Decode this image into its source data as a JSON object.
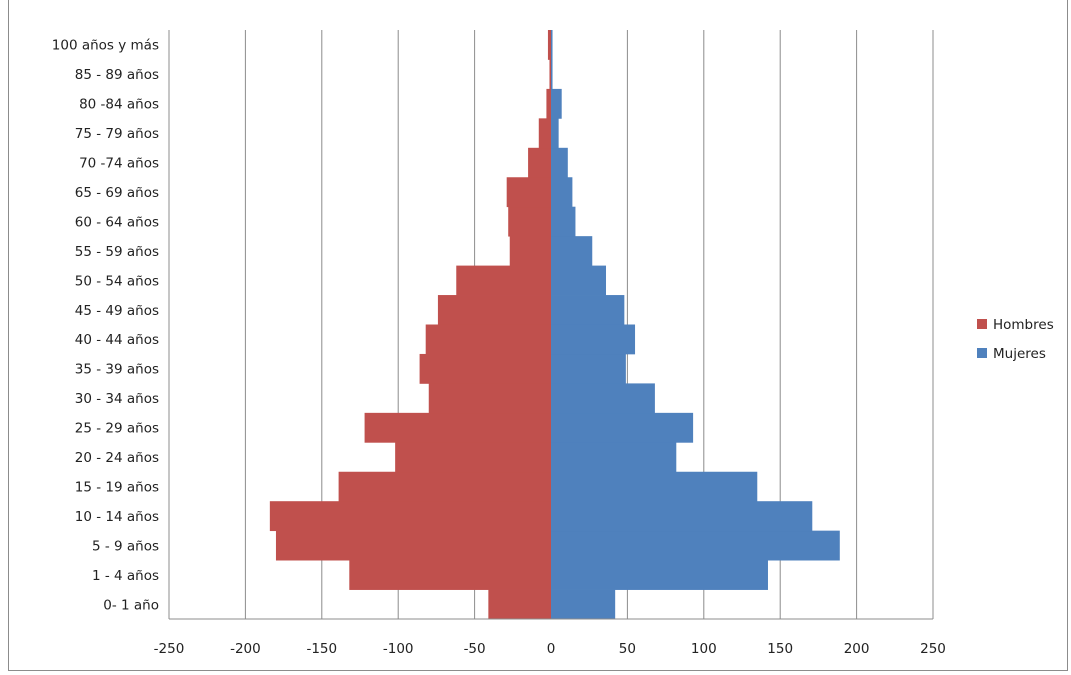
{
  "chart_data": {
    "type": "bar",
    "orientation": "horizontal",
    "layout": "population-pyramid",
    "title": "",
    "xlabel": "",
    "ylabel": "",
    "categories": [
      "0- 1 año",
      "1 - 4 años",
      "5 - 9 años",
      "10 - 14 años",
      "15 - 19 años",
      "20 - 24 años",
      "25 - 29 años",
      "30 - 34 años",
      "35 - 39 años",
      "40 - 44 años",
      "45 - 49 años",
      "50 - 54 años",
      "55 - 59 años",
      "60 - 64 años",
      "65 - 69 años",
      "70 -74 años",
      "75 - 79 años",
      "80 -84 años",
      "85 - 89 años",
      "100 años y más"
    ],
    "series": [
      {
        "name": "Hombres",
        "color": "#c0504d",
        "values": [
          -41,
          -132,
          -180,
          -184,
          -139,
          -102,
          -122,
          -80,
          -86,
          -82,
          -74,
          -62,
          -27,
          -28,
          -29,
          -15,
          -8,
          -3,
          -1,
          -2
        ]
      },
      {
        "name": "Mujeres",
        "color": "#4f81bd",
        "values": [
          42,
          142,
          189,
          171,
          135,
          82,
          93,
          68,
          49,
          55,
          48,
          36,
          27,
          16,
          14,
          11,
          5,
          7,
          1,
          1
        ]
      }
    ],
    "xlim": [
      -250,
      250
    ],
    "xticks": [
      "-250",
      "-200",
      "-150",
      "-100",
      "-50",
      "0",
      "50",
      "100",
      "150",
      "200",
      "250"
    ],
    "grid": "vertical",
    "legend": "right"
  }
}
